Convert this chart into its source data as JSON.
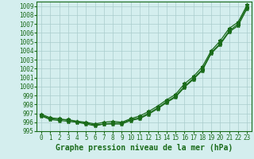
{
  "title": "Graphe pression niveau de la mer (hPa)",
  "bg_color": "#d4eeee",
  "grid_color": "#aacccc",
  "line_color": "#1a6b1a",
  "marker_color": "#1a6b1a",
  "xlim": [
    -0.5,
    23.5
  ],
  "ylim": [
    995,
    1009.5
  ],
  "xticks": [
    0,
    1,
    2,
    3,
    4,
    5,
    6,
    7,
    8,
    9,
    10,
    11,
    12,
    13,
    14,
    15,
    16,
    17,
    18,
    19,
    20,
    21,
    22,
    23
  ],
  "yticks": [
    995,
    996,
    997,
    998,
    999,
    1000,
    1001,
    1002,
    1003,
    1004,
    1005,
    1006,
    1007,
    1008,
    1009
  ],
  "series1": [
    996.8,
    996.4,
    996.3,
    996.3,
    996.1,
    996.0,
    995.8,
    996.0,
    996.1,
    996.0,
    996.4,
    996.7,
    997.2,
    997.8,
    998.5,
    999.1,
    1000.3,
    1001.1,
    1002.2,
    1004.0,
    1005.1,
    1006.5,
    1007.2,
    1009.1
  ],
  "series2": [
    996.9,
    996.5,
    996.4,
    996.2,
    996.1,
    995.9,
    995.7,
    995.8,
    995.9,
    995.9,
    996.3,
    996.5,
    997.0,
    997.6,
    998.3,
    998.9,
    1000.0,
    1000.9,
    1001.9,
    1003.8,
    1004.8,
    1006.2,
    1007.0,
    1008.9
  ],
  "series3": [
    996.7,
    996.3,
    996.2,
    996.1,
    996.0,
    995.8,
    995.6,
    995.8,
    995.8,
    995.8,
    996.2,
    996.4,
    996.9,
    997.5,
    998.2,
    998.8,
    999.9,
    1000.8,
    1001.8,
    1003.7,
    1004.7,
    1006.1,
    1006.8,
    1008.7
  ],
  "xticklabels": [
    "0",
    "1",
    "2",
    "3",
    "4",
    "5",
    "6",
    "7",
    "8",
    "9",
    "10",
    "11",
    "12",
    "13",
    "14",
    "15",
    "16",
    "17",
    "18",
    "19",
    "20",
    "21",
    "22",
    "23"
  ],
  "tick_fontsize": 5.5,
  "xlabel_fontsize": 7.0,
  "linewidth": 0.9,
  "markersize": 3.5
}
